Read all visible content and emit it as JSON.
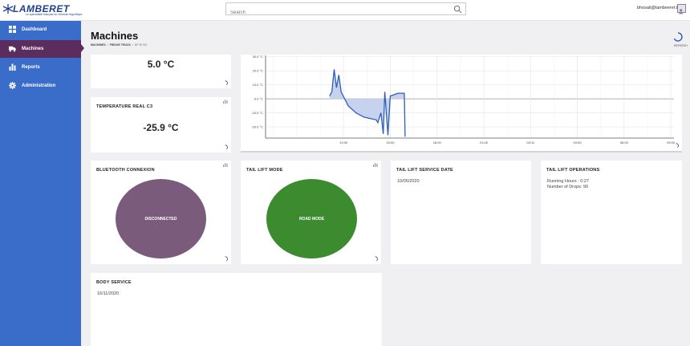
{
  "brand": {
    "name": "LAMBERET",
    "tagline": "Le spécialiste français du véhicule frigorifique"
  },
  "search": {
    "placeholder": "Search"
  },
  "user": {
    "email": "bhosali@lambeeret.fr"
  },
  "sidebar": {
    "items": [
      {
        "label": "Dashboard",
        "icon": "dashboard-icon"
      },
      {
        "label": "Machines",
        "icon": "truck-icon",
        "active": true
      },
      {
        "label": "Reports",
        "icon": "bar-chart-icon"
      },
      {
        "label": "Administration",
        "icon": "gear-icon"
      }
    ]
  },
  "header": {
    "title": "Machines",
    "breadcrumb": [
      "MACHINES",
      "FRIDGE TRUCK",
      "BP 80 BG"
    ],
    "refresh_label": "REFRESH"
  },
  "cards": {
    "temp_c2": {
      "value": "5.0 °C"
    },
    "temp_c3": {
      "title": "TEMPERATURE REAL C3",
      "value": "-25.9 °C"
    },
    "bluetooth": {
      "title": "BLUETOOTH CONNEXION",
      "status": "DISCONNECTED",
      "color": "#7a5b7b"
    },
    "tail_lift_mode": {
      "title": "TAIL LIFT MODE",
      "status": "ROAD MODE",
      "color": "#3c8c2f"
    },
    "tail_lift_service": {
      "title": "TAIL LIFT SERVICE DATE",
      "date": "10/05/2020"
    },
    "tail_lift_ops": {
      "title": "TAIL LIFT OPERATIONS",
      "running_hours": "Running Hours : 0:27",
      "drops": "Number of Drops: 90"
    },
    "body_service": {
      "title": "BODY SERVICE",
      "date": "16/11/2020"
    }
  },
  "chart_data": {
    "type": "area",
    "x_ticks": [
      "12:00",
      "15:00",
      "18:00",
      "21:00",
      "02/11",
      "03:00",
      "06:00",
      "09:00"
    ],
    "y_ticks": [
      "30.0 °C",
      "20.0 °C",
      "10.0 °C",
      "0.0 °C",
      "-10.0 °C",
      "-20.0 °C"
    ],
    "ylim": [
      -28,
      31
    ],
    "xlim": [
      7,
      33.2
    ],
    "line_color": "#2e5fb7",
    "fill_color": "#c7d3ee",
    "series": [
      {
        "values": [
          [
            11.1,
            2
          ],
          [
            11.25,
            5
          ],
          [
            11.4,
            21
          ],
          [
            11.55,
            8
          ],
          [
            11.7,
            17
          ],
          [
            11.85,
            5
          ],
          [
            12.3,
            -5
          ],
          [
            12.8,
            -10
          ],
          [
            13.3,
            -13
          ],
          [
            13.7,
            -14
          ],
          [
            14.1,
            -15
          ],
          [
            14.2,
            -17
          ],
          [
            14.4,
            -10
          ],
          [
            14.55,
            -25
          ],
          [
            14.65,
            5
          ],
          [
            14.85,
            -26
          ],
          [
            15.0,
            2
          ],
          [
            15.5,
            4
          ],
          [
            15.9,
            4
          ],
          [
            15.95,
            -27
          ]
        ]
      }
    ]
  }
}
